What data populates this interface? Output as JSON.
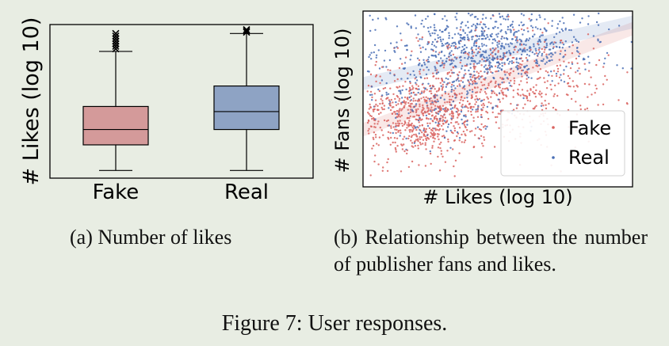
{
  "colors": {
    "fake": "#d98b8b",
    "real": "#5d7fbf",
    "fake_box": "#d49a9a",
    "real_box": "#8ea3c4"
  },
  "chart_data": [
    {
      "type": "box",
      "ylabel": "# Likes (log 10)",
      "categories": [
        "Fake",
        "Real"
      ],
      "ylim": [
        0,
        6
      ],
      "series": [
        {
          "category": "Fake",
          "whisker_low": 0.3,
          "q1": 1.3,
          "median": 1.9,
          "q3": 2.8,
          "whisker_high": 4.95,
          "outliers": [
            5.05,
            5.15,
            5.25,
            5.35,
            5.45,
            5.55,
            5.65
          ]
        },
        {
          "category": "Real",
          "whisker_low": 0.3,
          "q1": 1.9,
          "median": 2.6,
          "q3": 3.6,
          "whisker_high": 5.65,
          "outliers": [
            5.7,
            5.75,
            5.8
          ]
        }
      ]
    },
    {
      "type": "scatter",
      "xlabel": "# Likes (log 10)",
      "ylabel": "# Fans (log 10)",
      "xlim": [
        0,
        6
      ],
      "ylim": [
        0,
        8
      ],
      "legend_position": "bottom-right",
      "series": [
        {
          "name": "Fake",
          "color": "#d9635f",
          "trend": [
            [
              0,
              2.6
            ],
            [
              6,
              7.2
            ]
          ],
          "clusters": [
            {
              "cx": 1.3,
              "cy": 3.2,
              "sx": 0.65,
              "sy": 1.1,
              "n": 650
            },
            {
              "cx": 3.2,
              "cy": 4.6,
              "sx": 1.0,
              "sy": 1.3,
              "n": 550
            }
          ]
        },
        {
          "name": "Real",
          "color": "#4a6fb5",
          "trend": [
            [
              0,
              4.7
            ],
            [
              6,
              7.5
            ]
          ],
          "clusters": [
            {
              "cx": 2.9,
              "cy": 6.4,
              "sx": 1.1,
              "sy": 0.8,
              "n": 700
            },
            {
              "cx": 1.6,
              "cy": 4.3,
              "sx": 0.8,
              "sy": 1.2,
              "n": 250
            }
          ]
        }
      ]
    }
  ],
  "captions": {
    "a": "(a) Number of likes",
    "b": "(b) Relationship between the number of publisher fans and likes.",
    "figure": "Figure 7: User responses."
  }
}
